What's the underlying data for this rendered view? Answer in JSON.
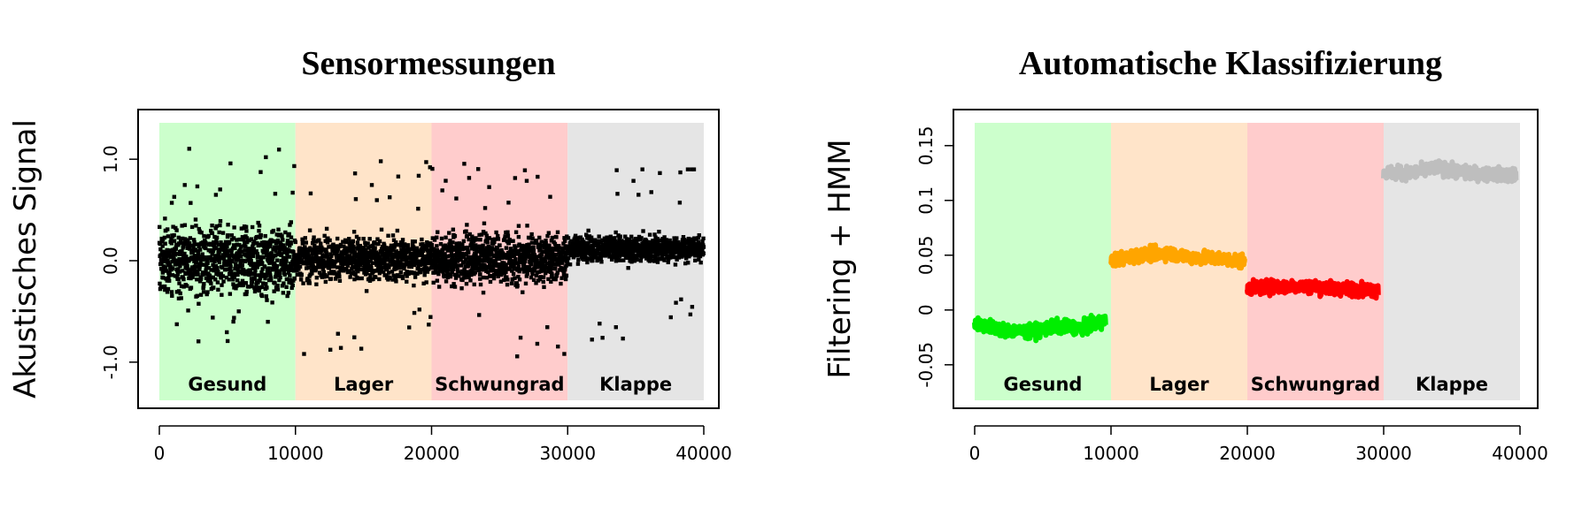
{
  "chart_data": [
    {
      "type": "scatter",
      "title": "Sensormessungen",
      "xlabel": "",
      "ylabel": "Akustisches Signal",
      "xlim": [
        0,
        40000
      ],
      "ylim": [
        -1.35,
        1.35
      ],
      "xticks": [
        0,
        10000,
        20000,
        30000,
        40000
      ],
      "xtick_labels": [
        "0",
        "10000",
        "20000",
        "30000",
        "40000"
      ],
      "yticks": [
        -1.0,
        0.0,
        1.0
      ],
      "ytick_labels": [
        "-1.0",
        "0.0",
        "1.0"
      ],
      "grid": false,
      "regions": [
        {
          "label": "Gesund",
          "x0": 0,
          "x1": 10000,
          "color": "#ccffcc"
        },
        {
          "label": "Lager",
          "x0": 10000,
          "x1": 20000,
          "color": "#ffe4c9"
        },
        {
          "label": "Schwungrad",
          "x0": 20000,
          "x1": 30000,
          "color": "#ffcccc"
        },
        {
          "label": "Klappe",
          "x0": 30000,
          "x1": 40000,
          "color": "#e5e5e5"
        }
      ],
      "series": [
        {
          "color": "#000000",
          "segments": [
            {
              "x0": 0,
              "x1": 10000,
              "mean": 0.0,
              "spread": 0.33,
              "max": 1.12,
              "min": -0.85
            },
            {
              "x0": 10000,
              "x1": 20000,
              "mean": 0.02,
              "spread": 0.2,
              "max": 0.98,
              "min": -1.0
            },
            {
              "x0": 20000,
              "x1": 30000,
              "mean": 0.02,
              "spread": 0.24,
              "max": 0.97,
              "min": -1.05
            },
            {
              "x0": 30000,
              "x1": 40000,
              "mean": 0.12,
              "spread": 0.12,
              "max": 0.9,
              "min": -1.0
            }
          ]
        }
      ]
    },
    {
      "type": "line",
      "title": "Automatische Klassifizierung",
      "xlabel": "",
      "ylabel": "Filtering + HMM",
      "xlim": [
        0,
        40000
      ],
      "ylim": [
        -0.08,
        0.17
      ],
      "xticks": [
        0,
        10000,
        20000,
        30000,
        40000
      ],
      "xtick_labels": [
        "0",
        "10000",
        "20000",
        "30000",
        "40000"
      ],
      "yticks": [
        -0.05,
        0,
        0.05,
        0.1,
        0.15
      ],
      "ytick_labels": [
        "-0.05",
        "0",
        "0.05",
        "0.1",
        "0.15"
      ],
      "grid": false,
      "regions": [
        {
          "label": "Gesund",
          "x0": 0,
          "x1": 10000,
          "color": "#ccffcc"
        },
        {
          "label": "Lager",
          "x0": 10000,
          "x1": 20000,
          "color": "#ffe4c9"
        },
        {
          "label": "Schwungrad",
          "x0": 20000,
          "x1": 30000,
          "color": "#ffcccc"
        },
        {
          "label": "Klappe",
          "x0": 30000,
          "x1": 40000,
          "color": "#e5e5e5"
        }
      ],
      "series": [
        {
          "color": "#00ee00",
          "x": [
            0,
            2000,
            4000,
            6000,
            8000,
            9600
          ],
          "y": [
            -0.012,
            -0.018,
            -0.02,
            -0.015,
            -0.016,
            -0.01
          ]
        },
        {
          "color": "#ffa500",
          "x": [
            10000,
            12000,
            14000,
            16000,
            18000,
            19800
          ],
          "y": [
            0.045,
            0.05,
            0.052,
            0.048,
            0.047,
            0.044
          ]
        },
        {
          "color": "#ff0000",
          "x": [
            20000,
            22000,
            24000,
            26000,
            28000,
            29600
          ],
          "y": [
            0.02,
            0.021,
            0.022,
            0.02,
            0.019,
            0.018
          ]
        },
        {
          "color": "#bebebe",
          "x": [
            30000,
            32000,
            34000,
            36000,
            38000,
            39700
          ],
          "y": [
            0.125,
            0.125,
            0.13,
            0.125,
            0.124,
            0.123
          ]
        }
      ]
    }
  ]
}
